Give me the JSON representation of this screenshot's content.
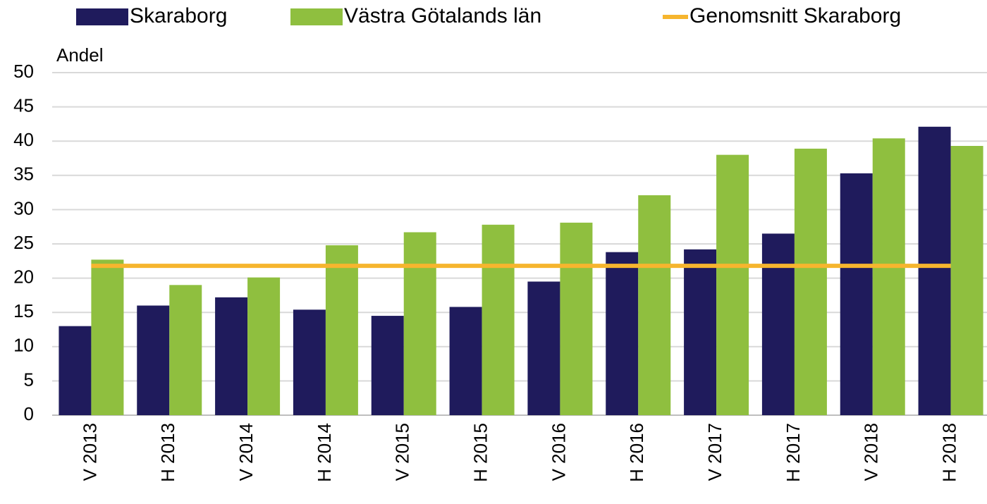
{
  "chart_data": {
    "type": "bar",
    "y_label": "Andel",
    "categories": [
      "V 2013",
      "H 2013",
      "V 2014",
      "H 2014",
      "V 2015",
      "H 2015",
      "V 2016",
      "H 2016",
      "V 2017",
      "H 2017",
      "V 2018",
      "H 2018"
    ],
    "series": [
      {
        "name": "Skaraborg",
        "color": "#1f1b5c",
        "values": [
          13,
          16,
          17.2,
          15.4,
          14.5,
          15.8,
          19.5,
          23.8,
          24.2,
          26.5,
          35.3,
          42.1
        ]
      },
      {
        "name": "Västra Götalands län",
        "color": "#8fbf3f",
        "values": [
          22.7,
          19,
          20.1,
          24.8,
          26.7,
          27.8,
          28.1,
          32.1,
          38,
          38.9,
          40.4,
          39.3
        ]
      },
      {
        "name": "Genomsnitt Skaraborg",
        "type": "line",
        "color": "#f6b52e",
        "values": [
          21.8,
          21.8,
          21.8,
          21.8,
          21.8,
          21.8,
          21.8,
          21.8,
          21.8,
          21.8,
          21.8,
          21.8
        ]
      }
    ],
    "ylim": [
      0,
      50
    ],
    "yticks": [
      0,
      5,
      10,
      15,
      20,
      25,
      30,
      35,
      40,
      45,
      50
    ],
    "grid": true,
    "legend": "top"
  }
}
